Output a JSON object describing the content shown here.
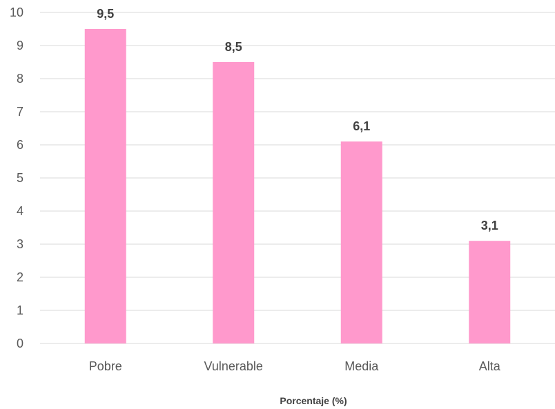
{
  "chart_data": {
    "type": "bar",
    "categories": [
      "Pobre",
      "Vulnerable",
      "Media",
      "Alta"
    ],
    "values": [
      9.5,
      8.5,
      6.1,
      3.1
    ],
    "data_labels": [
      "9,5",
      "8,5",
      "6,1",
      "3,1"
    ],
    "y_ticks": [
      "0",
      "1",
      "2",
      "3",
      "4",
      "5",
      "6",
      "7",
      "8",
      "9",
      "10"
    ],
    "title": "",
    "xlabel": "Porcentaje (%)",
    "ylabel": "",
    "ylim": [
      0,
      10
    ],
    "grid": true,
    "legend": "none",
    "bar_color": "#ff99cc",
    "grid_color": "#d9d9d9"
  }
}
